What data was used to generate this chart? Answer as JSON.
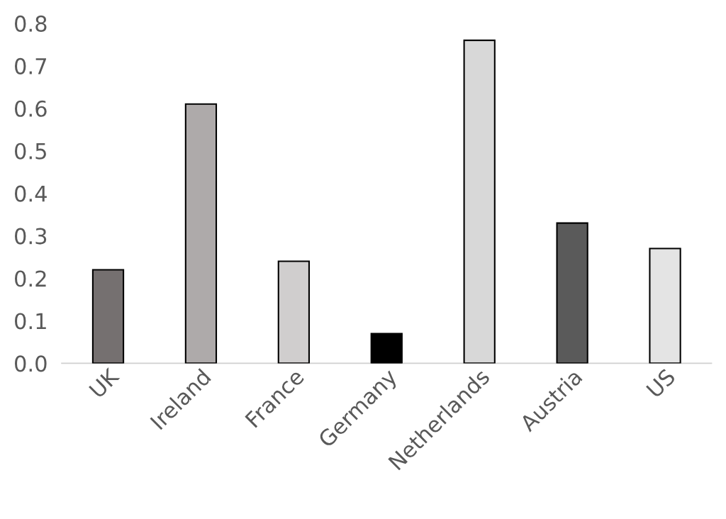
{
  "chart_data": {
    "type": "bar",
    "categories": [
      "UK",
      "Ireland",
      "France",
      "Germany",
      "Netherlands",
      "Austria",
      "US"
    ],
    "values": [
      0.22,
      0.61,
      0.24,
      0.07,
      0.76,
      0.33,
      0.27
    ],
    "colors": [
      "#757070",
      "#aeaaaa",
      "#d0cece",
      "#000000",
      "#d8d8d8",
      "#5a5a5a",
      "#e4e4e4"
    ],
    "ylim": [
      0,
      0.8
    ],
    "yticks": [
      {
        "value": 0,
        "label": "0.0"
      },
      0.1,
      0.2,
      0.3,
      0.4,
      0.5,
      0.6,
      0.7,
      0.8
    ],
    "grid": false
  }
}
